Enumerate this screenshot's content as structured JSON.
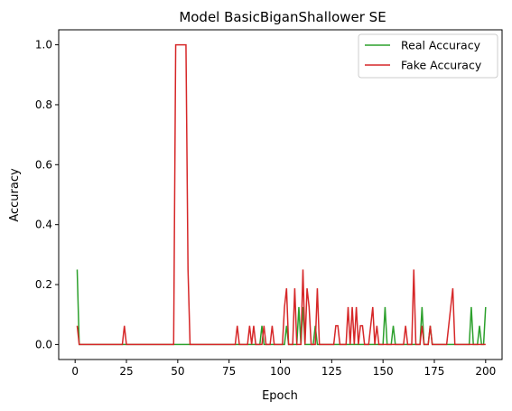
{
  "chart_data": {
    "type": "line",
    "title": "Model BasicBiganShallower SE",
    "xlabel": "Epoch",
    "ylabel": "Accuracy",
    "xlim": [
      -8,
      208
    ],
    "ylim": [
      -0.05,
      1.05
    ],
    "xticks": [
      0,
      25,
      50,
      75,
      100,
      125,
      150,
      175,
      200
    ],
    "yticks": [
      0.0,
      0.2,
      0.4,
      0.6,
      0.8,
      1.0
    ],
    "ytick_labels": [
      "0.0",
      "0.2",
      "0.4",
      "0.6",
      "0.8",
      "1.0"
    ],
    "grid": false,
    "legend_position": "top-right",
    "series": [
      {
        "name": "Real Accuracy",
        "color": "#2ca02c",
        "points": [
          [
            1,
            0.25
          ],
          [
            2,
            0
          ],
          [
            90,
            0
          ],
          [
            91,
            0.0625
          ],
          [
            92,
            0
          ],
          [
            102,
            0
          ],
          [
            103,
            0.0625
          ],
          [
            104,
            0
          ],
          [
            108,
            0
          ],
          [
            109,
            0.125
          ],
          [
            110,
            0
          ],
          [
            111,
            0.125
          ],
          [
            112,
            0
          ],
          [
            116,
            0
          ],
          [
            117,
            0.0625
          ],
          [
            118,
            0
          ],
          [
            150,
            0
          ],
          [
            151,
            0.125
          ],
          [
            152,
            0
          ],
          [
            154,
            0
          ],
          [
            155,
            0.0625
          ],
          [
            156,
            0
          ],
          [
            168,
            0
          ],
          [
            169,
            0.125
          ],
          [
            170,
            0
          ],
          [
            172,
            0
          ],
          [
            173,
            0.0625
          ],
          [
            174,
            0
          ],
          [
            192,
            0
          ],
          [
            193,
            0.125
          ],
          [
            194,
            0
          ],
          [
            196,
            0
          ],
          [
            197,
            0.0625
          ],
          [
            198,
            0
          ],
          [
            199,
            0
          ],
          [
            200,
            0.125
          ]
        ]
      },
      {
        "name": "Fake Accuracy",
        "color": "#d62728",
        "points": [
          [
            1,
            0.0625
          ],
          [
            2,
            0
          ],
          [
            23,
            0
          ],
          [
            24,
            0.0625
          ],
          [
            25,
            0
          ],
          [
            48,
            0
          ],
          [
            49,
            1.0
          ],
          [
            50,
            1.0
          ],
          [
            51,
            1.0
          ],
          [
            52,
            1.0
          ],
          [
            53,
            1.0
          ],
          [
            54,
            1.0
          ],
          [
            55,
            0.25
          ],
          [
            56,
            0
          ],
          [
            78,
            0
          ],
          [
            79,
            0.0625
          ],
          [
            80,
            0
          ],
          [
            84,
            0
          ],
          [
            85,
            0.0625
          ],
          [
            86,
            0
          ],
          [
            87,
            0.0625
          ],
          [
            88,
            0
          ],
          [
            91,
            0
          ],
          [
            92,
            0.0625
          ],
          [
            93,
            0
          ],
          [
            95,
            0
          ],
          [
            96,
            0.0625
          ],
          [
            97,
            0
          ],
          [
            101,
            0
          ],
          [
            102,
            0.125
          ],
          [
            103,
            0.1875
          ],
          [
            104,
            0
          ],
          [
            106,
            0
          ],
          [
            107,
            0.1875
          ],
          [
            108,
            0
          ],
          [
            110,
            0
          ],
          [
            111,
            0.25
          ],
          [
            112,
            0
          ],
          [
            113,
            0.1875
          ],
          [
            114,
            0.125
          ],
          [
            115,
            0
          ],
          [
            117,
            0
          ],
          [
            118,
            0.1875
          ],
          [
            119,
            0
          ],
          [
            126,
            0
          ],
          [
            127,
            0.0625
          ],
          [
            128,
            0.0625
          ],
          [
            129,
            0
          ],
          [
            132,
            0
          ],
          [
            133,
            0.125
          ],
          [
            134,
            0
          ],
          [
            135,
            0.125
          ],
          [
            136,
            0
          ],
          [
            137,
            0.125
          ],
          [
            138,
            0
          ],
          [
            139,
            0.0625
          ],
          [
            140,
            0.0625
          ],
          [
            141,
            0
          ],
          [
            143,
            0
          ],
          [
            144,
            0.0625
          ],
          [
            145,
            0.125
          ],
          [
            146,
            0
          ],
          [
            147,
            0.0625
          ],
          [
            148,
            0
          ],
          [
            160,
            0
          ],
          [
            161,
            0.0625
          ],
          [
            162,
            0
          ],
          [
            164,
            0
          ],
          [
            165,
            0.25
          ],
          [
            166,
            0
          ],
          [
            168,
            0
          ],
          [
            169,
            0.0625
          ],
          [
            170,
            0
          ],
          [
            172,
            0
          ],
          [
            173,
            0.0625
          ],
          [
            174,
            0
          ],
          [
            181,
            0
          ],
          [
            182,
            0.0625
          ],
          [
            183,
            0.125
          ],
          [
            184,
            0.1875
          ],
          [
            185,
            0
          ],
          [
            200,
            0
          ]
        ]
      }
    ]
  }
}
